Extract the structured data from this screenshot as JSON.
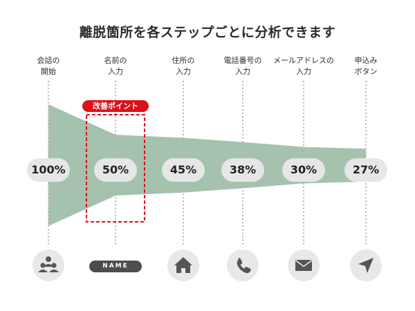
{
  "title": "離脱箇所を各ステップごとに分析できます",
  "badge": "改善ポイント",
  "colors": {
    "funnel": "#a4c2ad",
    "highlight": "#d9121b",
    "pill_bg": "#e6e6e6",
    "icon_circle": "#e8e8e8",
    "icon_fill": "#555555",
    "dots": "#b4b4b4"
  },
  "steps": [
    {
      "label": "会話の\n開始",
      "percent": "100%",
      "value": 100,
      "icon": "users-icon"
    },
    {
      "label": "名前の\n入力",
      "percent": "50%",
      "value": 50,
      "icon": "name-tag-icon",
      "chip": "NAME",
      "highlight": true
    },
    {
      "label": "住所の\n入力",
      "percent": "45%",
      "value": 45,
      "icon": "house-icon"
    },
    {
      "label": "電話番号の\n入力",
      "percent": "38%",
      "value": 38,
      "icon": "phone-icon"
    },
    {
      "label": "メールアドレスの\n入力",
      "percent": "30%",
      "value": 30,
      "icon": "mail-icon"
    },
    {
      "label": "申込み\nボタン",
      "percent": "27%",
      "value": 27,
      "icon": "send-icon"
    }
  ]
}
